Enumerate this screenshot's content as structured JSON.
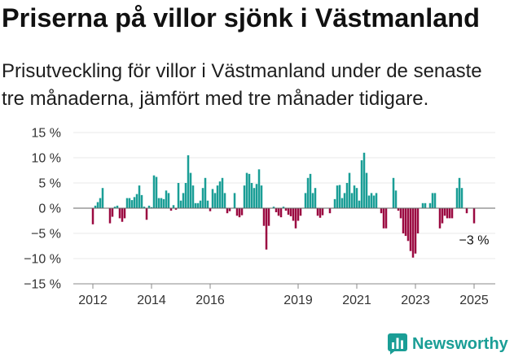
{
  "chart_data": {
    "type": "bar",
    "title": "Priserna på villor sjönk i Västmanland",
    "subtitle": "Prisutveckling för villor i Västmanland under de senaste tre månaderna, jämfört med tre månader tidigare.",
    "ylim": [
      -15,
      15
    ],
    "xlim": [
      2011.333,
      2025.722
    ],
    "grid": true,
    "y_ticks": [
      {
        "value": 15,
        "label": "15 %"
      },
      {
        "value": 10,
        "label": "10 %"
      },
      {
        "value": 5,
        "label": "5 %"
      },
      {
        "value": 0,
        "label": "0 %"
      },
      {
        "value": -5,
        "label": "−5 %"
      },
      {
        "value": -10,
        "label": "−10 %"
      },
      {
        "value": -15,
        "label": "−15 %"
      }
    ],
    "x_ticks": [
      {
        "value": 2012,
        "label": "2012"
      },
      {
        "value": 2014,
        "label": "2014"
      },
      {
        "value": 2016,
        "label": "2016"
      },
      {
        "value": 2019,
        "label": "2019"
      },
      {
        "value": 2021,
        "label": "2021"
      },
      {
        "value": 2023,
        "label": "2023"
      },
      {
        "value": 2025,
        "label": "2025"
      }
    ],
    "x_start": 2012,
    "periods_per_year": 12,
    "values": [
      -3.2,
      0.5,
      1.2,
      2.0,
      4.0,
      null,
      null,
      -3.0,
      -1.7,
      0.3,
      0.5,
      -2.0,
      -2.7,
      -2.0,
      2.0,
      2.0,
      1.6,
      2.2,
      2.8,
      4.5,
      2.6,
      0.3,
      -2.3,
      0.5,
      0.2,
      6.5,
      6.2,
      2.0,
      2.0,
      1.8,
      3.5,
      3.0,
      -0.5,
      0.6,
      -0.3,
      5.0,
      1.5,
      3.0,
      5.0,
      10.5,
      7.0,
      4.5,
      1.0,
      1.0,
      1.5,
      4.0,
      6.0,
      1.5,
      -0.6,
      3.8,
      3.0,
      4.5,
      5.3,
      6.0,
      3.0,
      -1.0,
      -0.6,
      null,
      3.0,
      -1.5,
      -1.8,
      -1.4,
      4.5,
      7.0,
      6.8,
      5.0,
      4.0,
      4.8,
      7.7,
      4.5,
      -3.5,
      -8.2,
      -3.5,
      null,
      0.3,
      -0.8,
      -1.5,
      -1.8,
      0.3,
      -0.5,
      -1.3,
      -1.6,
      -2.5,
      -4.0,
      -2.5,
      -1.5,
      null,
      3.0,
      6.0,
      6.8,
      3.0,
      4.0,
      -1.5,
      -1.9,
      -1.4,
      null,
      null,
      -1.0,
      null,
      1.8,
      4.5,
      4.6,
      2.0,
      3.0,
      5.0,
      7.0,
      3.0,
      4.5,
      4.0,
      1.5,
      9.5,
      11.0,
      7.0,
      2.5,
      3.0,
      2.5,
      3.0,
      null,
      -1.0,
      -4.0,
      -4.0,
      null,
      null,
      6.0,
      3.5,
      -0.5,
      -2.0,
      -5.0,
      -5.5,
      -6.5,
      -8.5,
      -9.8,
      -9.0,
      -5.0,
      null,
      1.0,
      1.0,
      null,
      1.0,
      3.0,
      3.0,
      null,
      -4.0,
      -3.0,
      -1.5,
      -2.0,
      -2.0,
      -2.0,
      null,
      4.0,
      6.0,
      4.0,
      null,
      -1.0,
      null,
      null,
      -3.0
    ],
    "colors": {
      "positive": "#1a9e96",
      "negative": "#9b0a41",
      "zero_line": "#666666",
      "grid": "#e8e8e8",
      "axis": "#8a8a8a"
    },
    "annotation": {
      "text": "−3 %",
      "value": -3
    }
  },
  "brand": {
    "name": "Newsworthy",
    "icon": "newsworthy-logo-icon",
    "color": "#1a9e96"
  }
}
